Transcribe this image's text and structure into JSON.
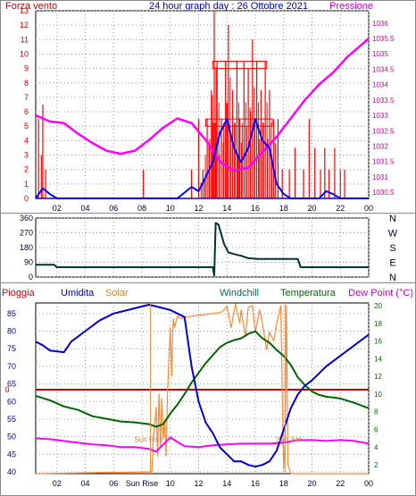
{
  "title": "24 hour graph day : 26 Ottobre 2021",
  "colors": {
    "wind": "#ff0000",
    "gust": "#ff0000",
    "wind_avg": "#0000ff",
    "pressure": "#ff00ff",
    "direction": "#003333",
    "humidity": "#0000cc",
    "solar": "#ff8833",
    "windchill": "#006666",
    "temperature": "#006600",
    "dewpoint": "#ff00ff",
    "rain": "#cc0000",
    "grid": "#999999",
    "axis_left": "#cc0000",
    "axis_right": "#cc0099"
  },
  "chart_data": [
    {
      "type": "line",
      "name": "wind-pressure",
      "labels": {
        "left": "Forza vento",
        "right": "Pressione"
      },
      "x_ticks": [
        "02",
        "04",
        "06",
        "08",
        "10",
        "12",
        "14",
        "16",
        "18",
        "20",
        "22",
        "00"
      ],
      "y_left_ticks": [
        "0",
        "1",
        "2",
        "3",
        "4",
        "5",
        "6",
        "7",
        "8",
        "9",
        "10",
        "11",
        "12",
        "13"
      ],
      "y_right_ticks": [
        "1030.5",
        "1031",
        "1031.5",
        "1032",
        "1032.5",
        "1033",
        "1033.5",
        "1034",
        "1034.5",
        "1035",
        "1035.5",
        "1036"
      ],
      "ylim_left": [
        0,
        13
      ],
      "ylim_right": [
        1030.3,
        1036.4
      ],
      "xlim": [
        0.5,
        24
      ],
      "pressure": {
        "x": [
          0.5,
          1.5,
          2.5,
          3.5,
          4.5,
          5.5,
          6.5,
          7.5,
          8.5,
          9.5,
          10.5,
          11.5,
          12.5,
          13.5,
          14.5,
          15.5,
          16.5,
          17.5,
          18.5,
          19.5,
          20.5,
          21.5,
          22.5,
          23.5,
          24
        ],
        "y": [
          1033.0,
          1032.8,
          1032.75,
          1032.4,
          1032.1,
          1031.85,
          1031.75,
          1031.85,
          1032.2,
          1032.6,
          1032.9,
          1032.75,
          1032.2,
          1031.5,
          1031.2,
          1031.3,
          1031.8,
          1032.3,
          1032.9,
          1033.5,
          1034.0,
          1034.4,
          1034.9,
          1035.3,
          1035.5
        ]
      },
      "wind_avg": {
        "x": [
          0.5,
          1.0,
          1.5,
          2.0,
          8.0,
          10.5,
          11.5,
          12.0,
          12.5,
          13.0,
          13.5,
          14.0,
          14.5,
          15.0,
          15.5,
          16.0,
          16.5,
          17.0,
          17.5,
          18.0,
          18.5,
          20.5,
          21.0,
          21.5,
          22.0,
          24.0
        ],
        "y": [
          0,
          0.7,
          0.3,
          0,
          0,
          0,
          0.8,
          0.5,
          1.5,
          2.5,
          4.5,
          5.5,
          3.5,
          2.5,
          3.5,
          5.5,
          4.0,
          3.5,
          1.0,
          0.3,
          0,
          0,
          0.5,
          0.3,
          0,
          0
        ]
      },
      "gust_peaks": {
        "x": [
          0.7,
          0.9,
          1.0,
          1.2,
          8.1,
          11.5,
          12.0,
          12.3,
          12.6,
          12.9,
          13.1,
          13.3,
          13.6,
          13.9,
          14.1,
          14.4,
          14.7,
          14.9,
          15.2,
          15.5,
          15.8,
          16.1,
          16.4,
          16.7,
          17.0,
          17.3,
          17.6,
          17.9,
          18.4,
          18.8,
          19.4,
          19.8,
          20.2,
          20.6,
          20.9,
          21.2,
          21.6,
          22.0,
          22.3
        ],
        "y": [
          5.5,
          3.0,
          6.5,
          2.0,
          2.0,
          2.0,
          5.5,
          2.0,
          5.5,
          7.5,
          13.0,
          9.5,
          5.5,
          9.5,
          12.0,
          7.5,
          9.5,
          5.5,
          9.5,
          9.0,
          11.0,
          9.5,
          7.5,
          9.5,
          7.5,
          5.5,
          5.5,
          2.0,
          2.0,
          3.5,
          2.0,
          5.5,
          3.5,
          2.0,
          3.5,
          2.0,
          3.5,
          2.0,
          2.0
        ]
      }
    },
    {
      "type": "line",
      "name": "wind-direction",
      "y_ticks": [
        "360",
        "270",
        "180",
        "90",
        "0"
      ],
      "compass": [
        "N",
        "W",
        "S",
        "E",
        "N"
      ],
      "ylim": [
        0,
        360
      ],
      "xlim": [
        0.5,
        24
      ],
      "direction": {
        "x": [
          0.5,
          1.8,
          2.0,
          3.0,
          13.0,
          13.1,
          13.2,
          13.4,
          13.8,
          14.1,
          14.5,
          15.0,
          15.5,
          16.2,
          17.0,
          18.0,
          19.0,
          19.2,
          21.0,
          24.0
        ],
        "y": [
          75,
          75,
          60,
          60,
          60,
          10,
          330,
          320,
          200,
          150,
          140,
          130,
          115,
          110,
          110,
          110,
          110,
          60,
          60,
          60
        ]
      }
    },
    {
      "type": "line",
      "name": "temperature-humidity",
      "labels": {
        "rain": "Pioggia",
        "humidity": "Umidita",
        "solar": "Solar",
        "windchill": "Windchill",
        "temperature": "Temperatura",
        "dewpoint": "Dew Point (°C)"
      },
      "x_ticks": [
        "02",
        "04",
        "06",
        "Sun Rise",
        "10",
        "12",
        "14",
        "16",
        "18",
        "20",
        "22",
        "00"
      ],
      "y_left_ticks": [
        "40",
        "45",
        "50",
        "55",
        "60",
        "65",
        "70",
        "75",
        "80",
        "85"
      ],
      "y_right_ticks": [
        "2",
        "4",
        "6",
        "8",
        "10",
        "12",
        "14",
        "16",
        "18",
        "20"
      ],
      "rain_tick": "0",
      "ylim_left": [
        39.5,
        88
      ],
      "ylim_right": [
        1.0,
        20.3
      ],
      "xlim": [
        0.5,
        24
      ],
      "annotations": [
        "Sun Rise",
        "Sun Set"
      ],
      "humidity": {
        "x": [
          0.5,
          1.0,
          1.5,
          2.5,
          3.0,
          4.0,
          5.0,
          6.0,
          7.0,
          8.0,
          8.5,
          9.0,
          9.5,
          10.0,
          10.5,
          11.0,
          11.5,
          12.0,
          12.5,
          13.0,
          13.5,
          14.0,
          14.5,
          15.0,
          15.5,
          16.0,
          16.5,
          17.0,
          17.5,
          18.0,
          18.5,
          19.0,
          19.5,
          20.0,
          20.5,
          21.0,
          22.0,
          23.0,
          24.0
        ],
        "y": [
          77,
          76,
          74.5,
          74,
          77,
          80,
          83,
          85,
          86,
          87,
          87.5,
          87,
          86.5,
          86,
          85,
          84,
          70,
          60,
          54,
          51,
          47,
          45,
          43,
          43,
          42,
          41.5,
          42,
          43,
          46,
          52,
          58,
          62,
          64.5,
          66,
          68,
          70,
          73,
          76,
          79
        ]
      },
      "temperature": {
        "x": [
          0.5,
          1.5,
          2.5,
          3.5,
          4.5,
          5.5,
          6.5,
          7.5,
          8.5,
          9.0,
          9.5,
          10.0,
          10.5,
          11.0,
          11.5,
          12.0,
          12.5,
          13.0,
          13.5,
          14.0,
          14.5,
          15.0,
          15.5,
          16.0,
          16.5,
          17.0,
          17.5,
          18.0,
          18.5,
          19.0,
          19.5,
          20.0,
          20.5,
          21.0,
          22.0,
          23.0,
          24.0
        ],
        "y": [
          9.8,
          9.3,
          8.6,
          8.2,
          7.5,
          7.2,
          6.9,
          6.8,
          6.6,
          6.3,
          6.6,
          7.8,
          8.8,
          10.0,
          11.3,
          12.4,
          13.5,
          14.4,
          15.3,
          15.8,
          16.1,
          16.3,
          16.8,
          17.1,
          16.3,
          15.8,
          15.0,
          14.3,
          13.3,
          11.9,
          11.0,
          10.3,
          9.9,
          9.7,
          9.5,
          9.0,
          8.4
        ]
      },
      "dewpoint": {
        "x": [
          0.5,
          1.5,
          2.5,
          3.5,
          4.5,
          5.5,
          6.5,
          7.5,
          8.5,
          9.0,
          9.5,
          10.0,
          10.5,
          11.0,
          12.0,
          13.0,
          14.0,
          15.0,
          16.0,
          17.0,
          18.0,
          19.0,
          20.0,
          21.0,
          22.0,
          23.0,
          24.0
        ],
        "y": [
          5.0,
          4.9,
          4.7,
          4.5,
          4.3,
          4.2,
          4.0,
          4.0,
          3.8,
          3.5,
          4.3,
          5.1,
          4.6,
          4.1,
          4.0,
          4.2,
          4.3,
          4.4,
          4.4,
          4.4,
          4.5,
          4.8,
          4.8,
          4.7,
          4.8,
          4.7,
          4.4
        ]
      },
      "solar": {
        "x": [
          0.5,
          8.7,
          8.8,
          9.0,
          9.1,
          9.2,
          9.3,
          9.4,
          9.5,
          9.6,
          9.7,
          9.8,
          9.9,
          10.0,
          10.1,
          10.2,
          10.3,
          10.5,
          10.8,
          11.0,
          11.5,
          12.0,
          12.5,
          13.0,
          13.5,
          13.8,
          14.0,
          14.3,
          14.6,
          14.9,
          15.0,
          15.3,
          15.5,
          15.8,
          16.0,
          16.3,
          16.5,
          16.8,
          17.0,
          17.3,
          17.5,
          17.8,
          17.9,
          18.0,
          18.1,
          18.2,
          18.3,
          18.5,
          24.0
        ],
        "y": [
          1.0,
          1.2,
          5.0,
          8.5,
          3.0,
          10.0,
          4.0,
          9.5,
          5.0,
          7.0,
          3.0,
          10.0,
          14.0,
          17.5,
          12.0,
          18.5,
          17.5,
          18.8,
          18.5,
          18.7,
          18.8,
          18.9,
          19.0,
          19.1,
          19.2,
          19.5,
          20.0,
          17.5,
          20.2,
          18.0,
          19.5,
          16.5,
          19.8,
          20.0,
          17.0,
          19.5,
          18.0,
          15.0,
          17.0,
          16.0,
          18.0,
          20.0,
          10.0,
          1.5,
          5.0,
          20.0,
          2.0,
          1.0,
          1.0
        ]
      }
    }
  ]
}
